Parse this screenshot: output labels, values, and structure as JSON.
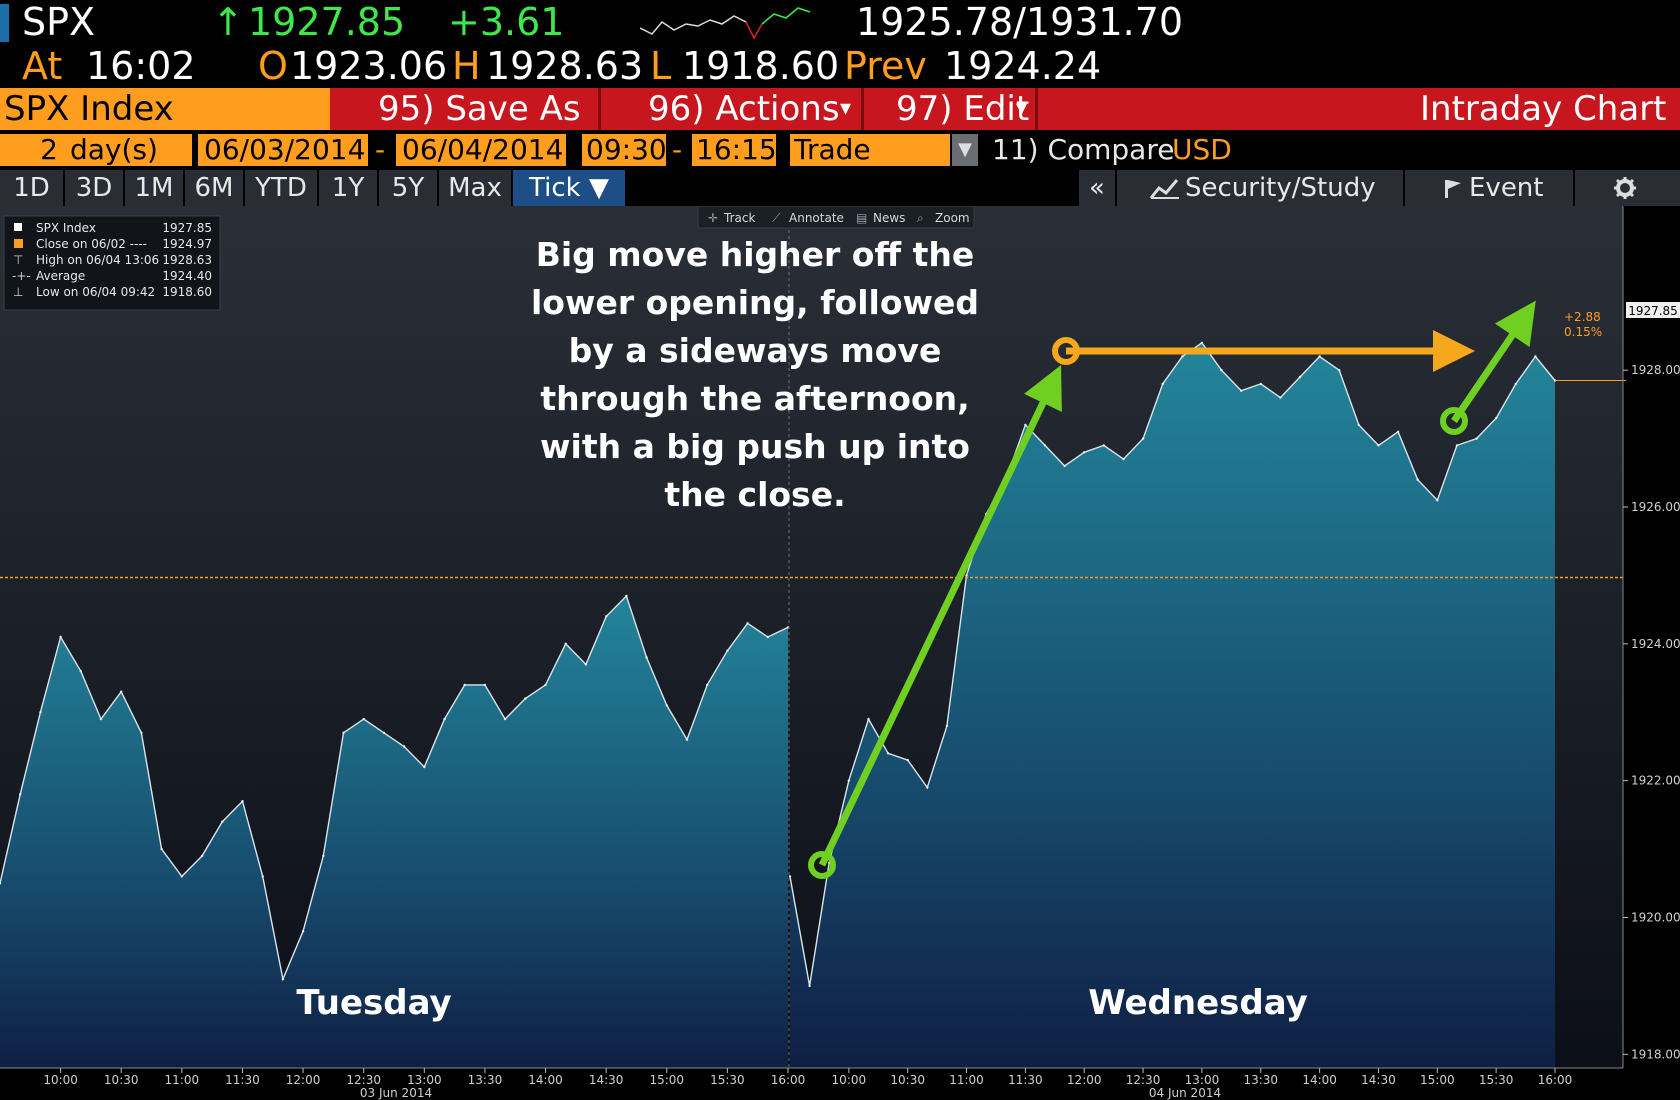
{
  "header": {
    "ticker": "SPX",
    "arrow": "↑",
    "last": "1927.85",
    "change": "+3.61",
    "bid_ask": "1925.78/1931.70",
    "at_label": "At",
    "time": "16:02",
    "open_label": "O",
    "open": "1923.06",
    "high_label": "H",
    "high": "1928.63",
    "low_label": "L",
    "low": "1918.60",
    "prev_label": "Prev",
    "prev": "1924.24"
  },
  "toolbar": {
    "security": "SPX Index",
    "save_as": "95) Save As",
    "actions": "96) Actions",
    "edit": "97) Edit",
    "chart_type": "Intraday Chart"
  },
  "params": {
    "days": "2",
    "days_label": "day(s)",
    "start_date": "06/03/2014",
    "dash1": "-",
    "end_date": "06/04/2014",
    "start_time": "09:30",
    "dash2": "-",
    "end_time": "16:15",
    "field": "Trade",
    "compare": "11) Compare",
    "currency": "USD"
  },
  "tabs": [
    "1D",
    "3D",
    "1M",
    "6M",
    "YTD",
    "1Y",
    "5Y",
    "Max",
    "Tick ▼"
  ],
  "right_tabs": {
    "collapse": "«",
    "study": "Security/Study",
    "event": "Event"
  },
  "chart_tools": [
    "Track",
    "Annotate",
    "News",
    "Zoom"
  ],
  "legend": {
    "rows": [
      {
        "label": "SPX Index",
        "value": "1927.85"
      },
      {
        "label": "Close on 06/02 ----",
        "value": "1924.97"
      },
      {
        "label": "High on 06/04 13:06",
        "value": "1928.63"
      },
      {
        "label": "Average",
        "value": "1924.40"
      },
      {
        "label": "Low on 06/04 09:42",
        "value": "1918.60"
      }
    ]
  },
  "annotation": {
    "lines": [
      "Big move higher off the",
      "lower opening, followed",
      "by a sideways move",
      "through the afternoon,",
      "with a big push up into",
      "the close."
    ]
  },
  "day_labels": [
    "Tuesday",
    "Wednesday"
  ],
  "last_tag": {
    "price": "1927.85",
    "change": "+2.88",
    "pct": "0.15%"
  },
  "colors": {
    "accent_orange": "#ff9d1e",
    "arrow_green": "#6fd022",
    "arrow_orange": "#f5a81c",
    "series_fill": "#1f6f86"
  },
  "chart_data": {
    "type": "area",
    "ylim": [
      1917.8,
      1930.4
    ],
    "y_ticks": [
      "1918.00",
      "1920.00",
      "1922.00",
      "1924.00",
      "1926.00",
      "1928.00"
    ],
    "reference_close": 1924.97,
    "x_sessions": [
      {
        "date_label": "03 Jun 2014",
        "ticks": [
          "10:00",
          "10:30",
          "11:00",
          "11:30",
          "12:00",
          "12:30",
          "13:00",
          "13:30",
          "14:00",
          "14:30",
          "15:00",
          "15:30",
          "16:00"
        ]
      },
      {
        "date_label": "04 Jun 2014",
        "ticks": [
          "10:00",
          "10:30",
          "11:00",
          "11:30",
          "12:00",
          "12:30",
          "13:00",
          "13:30",
          "14:00",
          "14:30",
          "15:00",
          "15:30",
          "16:00"
        ]
      }
    ],
    "series": [
      {
        "name": "SPX Index",
        "sessions": [
          {
            "x": [
              "09:30",
              "09:40",
              "09:50",
              "10:00",
              "10:10",
              "10:20",
              "10:30",
              "10:40",
              "10:50",
              "11:00",
              "11:10",
              "11:20",
              "11:30",
              "11:40",
              "11:50",
              "12:00",
              "12:10",
              "12:20",
              "12:30",
              "12:40",
              "12:50",
              "13:00",
              "13:10",
              "13:20",
              "13:30",
              "13:40",
              "13:50",
              "14:00",
              "14:10",
              "14:20",
              "14:30",
              "14:40",
              "14:50",
              "15:00",
              "15:10",
              "15:20",
              "15:30",
              "15:40",
              "15:50",
              "16:00"
            ],
            "y": [
              1920.5,
              1921.8,
              1923.0,
              1924.1,
              1923.6,
              1922.9,
              1923.3,
              1922.7,
              1921.0,
              1920.6,
              1920.9,
              1921.4,
              1921.7,
              1920.6,
              1919.1,
              1919.8,
              1920.9,
              1922.7,
              1922.9,
              1922.7,
              1922.5,
              1922.2,
              1922.9,
              1923.4,
              1923.4,
              1922.9,
              1923.2,
              1923.4,
              1924.0,
              1923.7,
              1924.4,
              1924.7,
              1923.8,
              1923.1,
              1922.6,
              1923.4,
              1923.9,
              1924.3,
              1924.1,
              1924.24
            ]
          },
          {
            "x": [
              "09:30",
              "09:40",
              "09:50",
              "10:00",
              "10:10",
              "10:20",
              "10:30",
              "10:40",
              "10:50",
              "11:00",
              "11:10",
              "11:20",
              "11:30",
              "11:40",
              "11:50",
              "12:00",
              "12:10",
              "12:20",
              "12:30",
              "12:40",
              "12:50",
              "13:00",
              "13:10",
              "13:20",
              "13:30",
              "13:40",
              "13:50",
              "14:00",
              "14:10",
              "14:20",
              "14:30",
              "14:40",
              "14:50",
              "15:00",
              "15:10",
              "15:20",
              "15:30",
              "15:40",
              "15:50",
              "16:00"
            ],
            "y": [
              1920.6,
              1919.0,
              1920.8,
              1922.0,
              1922.9,
              1922.4,
              1922.3,
              1921.9,
              1922.8,
              1925.0,
              1925.9,
              1926.4,
              1927.2,
              1926.9,
              1926.6,
              1926.8,
              1926.9,
              1926.7,
              1927.0,
              1927.8,
              1928.2,
              1928.4,
              1928.0,
              1927.7,
              1927.8,
              1927.6,
              1927.9,
              1928.2,
              1928.0,
              1927.2,
              1926.9,
              1927.1,
              1926.4,
              1926.1,
              1926.9,
              1927.0,
              1927.3,
              1927.8,
              1928.2,
              1927.85
            ]
          }
        ]
      }
    ]
  }
}
